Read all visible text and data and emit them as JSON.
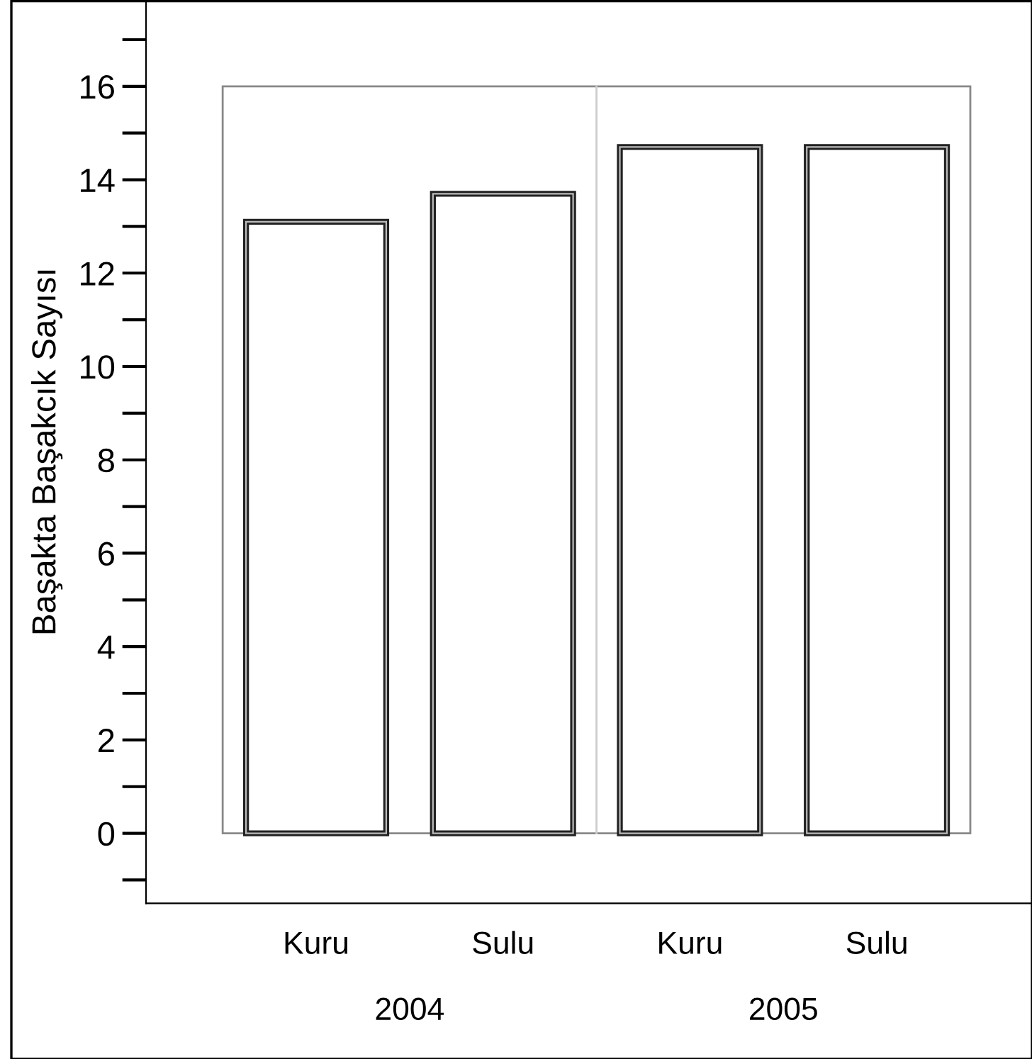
{
  "chart_data": {
    "type": "bar",
    "ylabel": "Başakta Başakcık Sayısı",
    "categories": [
      "Kuru",
      "Sulu",
      "Kuru",
      "Sulu"
    ],
    "values": [
      13.1,
      13.7,
      14.7,
      14.7
    ],
    "color": "#ffffff",
    "annotations": [
      "2004",
      "2005"
    ],
    "ylim": [
      -1.5,
      17.85
    ],
    "yticks": [
      0,
      2,
      4,
      6,
      8,
      10,
      12,
      14,
      16
    ],
    "grid": false
  }
}
